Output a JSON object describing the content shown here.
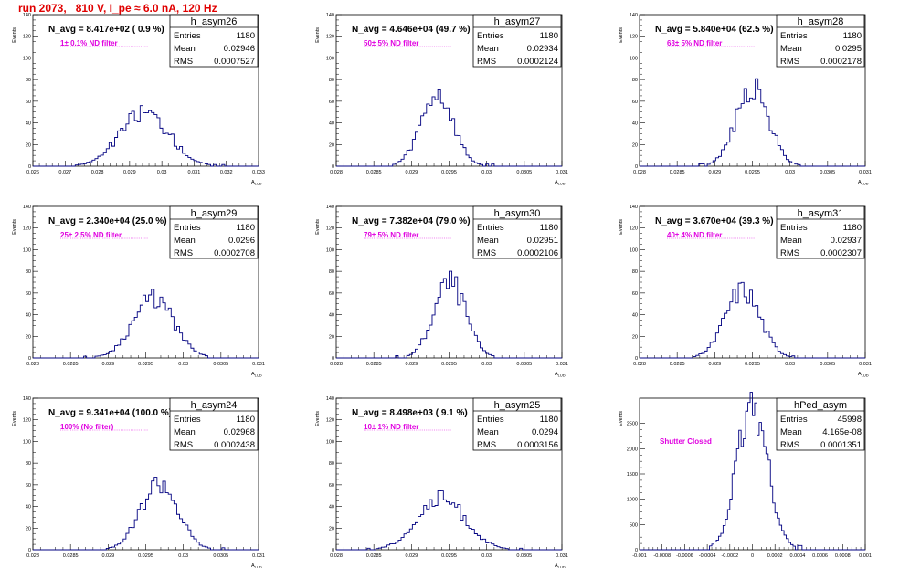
{
  "run_title": "run 2073,   810 V, I_pe ≈ 6.0 nA, 120 Hz",
  "y_axis_label": "Events",
  "colors": {
    "hist": "#000080",
    "title": "#e00000",
    "annotation": "#e000e0"
  },
  "chart_data": [
    {
      "type": "bar",
      "name": "h_asym26",
      "label": "N_avg = 8.417e+02 ( 0.9 %)",
      "note": "1± 0.1% ND filter",
      "entries": "1180",
      "mean": "0.02946",
      "rms": "0.0007527",
      "xlim": [
        0.026,
        0.033
      ],
      "ylim": [
        0,
        140
      ],
      "x_ticks": [
        "0.026",
        "0.027",
        "0.028",
        "0.029",
        "0.03",
        "0.031",
        "0.032",
        "0.033"
      ],
      "y_ticks": [
        "0",
        "20",
        "40",
        "60",
        "80",
        "100",
        "120",
        "140"
      ],
      "xlabel": "A",
      "hist": {
        "mean": 0.02946,
        "rms": 0.0007527,
        "peak": 50,
        "bins": 80,
        "seed": 26
      }
    },
    {
      "type": "bar",
      "name": "h_asym27",
      "label": "N_avg = 4.646e+04 (49.7 %)",
      "note": "50± 5% ND filter",
      "entries": "1180",
      "mean": "0.02934",
      "rms": "0.0002124",
      "xlim": [
        0.028,
        0.031
      ],
      "ylim": [
        0,
        140
      ],
      "x_ticks": [
        "0.028",
        "0.0285",
        "0.029",
        "0.0295",
        "0.03",
        "0.0305",
        "0.031"
      ],
      "y_ticks": [
        "0",
        "20",
        "40",
        "60",
        "80",
        "100",
        "120",
        "140"
      ],
      "xlabel": "A",
      "hist": {
        "mean": 0.02934,
        "rms": 0.0002124,
        "peak": 65,
        "bins": 80,
        "seed": 27
      }
    },
    {
      "type": "bar",
      "name": "h_asym28",
      "label": "N_avg = 5.840e+04 (62.5 %)",
      "note": "63± 5% ND filter",
      "entries": "1180",
      "mean": "0.0295",
      "rms": "0.0002178",
      "xlim": [
        0.028,
        0.031
      ],
      "ylim": [
        0,
        140
      ],
      "x_ticks": [
        "0.028",
        "0.0285",
        "0.029",
        "0.0295",
        "0.03",
        "0.0305",
        "0.031"
      ],
      "y_ticks": [
        "0",
        "20",
        "40",
        "60",
        "80",
        "100",
        "120",
        "140"
      ],
      "xlabel": "A",
      "hist": {
        "mean": 0.0295,
        "rms": 0.0002178,
        "peak": 72,
        "bins": 80,
        "seed": 28
      }
    },
    {
      "type": "bar",
      "name": "h_asym29",
      "label": "N_avg = 2.340e+04 (25.0 %)",
      "note": "25± 2.5% ND filter",
      "entries": "1180",
      "mean": "0.0296",
      "rms": "0.0002708",
      "xlim": [
        0.028,
        0.031
      ],
      "ylim": [
        0,
        140
      ],
      "x_ticks": [
        "0.028",
        "0.0285",
        "0.029",
        "0.0295",
        "0.03",
        "0.0305",
        "0.031"
      ],
      "y_ticks": [
        "0",
        "20",
        "40",
        "60",
        "80",
        "100",
        "120",
        "140"
      ],
      "xlabel": "A",
      "hist": {
        "mean": 0.0296,
        "rms": 0.0002708,
        "peak": 55,
        "bins": 80,
        "seed": 29
      }
    },
    {
      "type": "bar",
      "name": "h_asym30",
      "label": "N_avg = 7.382e+04 (79.0 %)",
      "note": "79± 5% ND filter",
      "entries": "1180",
      "mean": "0.02951",
      "rms": "0.0002106",
      "xlim": [
        0.028,
        0.031
      ],
      "ylim": [
        0,
        140
      ],
      "x_ticks": [
        "0.028",
        "0.0285",
        "0.029",
        "0.0295",
        "0.03",
        "0.0305",
        "0.031"
      ],
      "y_ticks": [
        "0",
        "20",
        "40",
        "60",
        "80",
        "100",
        "120",
        "140"
      ],
      "xlabel": "A",
      "hist": {
        "mean": 0.02951,
        "rms": 0.0002106,
        "peak": 70,
        "bins": 80,
        "seed": 30
      }
    },
    {
      "type": "bar",
      "name": "h_asym31",
      "label": "N_avg = 3.670e+04 (39.3 %)",
      "note": "40± 4% ND filter",
      "entries": "1180",
      "mean": "0.02937",
      "rms": "0.0002307",
      "xlim": [
        0.028,
        0.031
      ],
      "ylim": [
        0,
        140
      ],
      "x_ticks": [
        "0.028",
        "0.0285",
        "0.029",
        "0.0295",
        "0.03",
        "0.0305",
        "0.031"
      ],
      "y_ticks": [
        "0",
        "20",
        "40",
        "60",
        "80",
        "100",
        "120",
        "140"
      ],
      "xlabel": "A",
      "hist": {
        "mean": 0.02937,
        "rms": 0.0002307,
        "peak": 63,
        "bins": 80,
        "seed": 31
      }
    },
    {
      "type": "bar",
      "name": "h_asym24",
      "label": "N_avg = 9.341e+04 (100.0 %)",
      "note": "100% (No filter)",
      "entries": "1180",
      "mean": "0.02968",
      "rms": "0.0002438",
      "xlim": [
        0.028,
        0.031
      ],
      "ylim": [
        0,
        140
      ],
      "x_ticks": [
        "0.028",
        "0.0285",
        "0.029",
        "0.0295",
        "0.03",
        "0.0305",
        "0.031"
      ],
      "y_ticks": [
        "0",
        "20",
        "40",
        "60",
        "80",
        "100",
        "120",
        "140"
      ],
      "xlabel": "A",
      "hist": {
        "mean": 0.02968,
        "rms": 0.0002438,
        "peak": 62,
        "bins": 80,
        "seed": 24
      }
    },
    {
      "type": "bar",
      "name": "h_asym25",
      "label": "N_avg = 8.498e+03 ( 9.1 %)",
      "note": "10± 1% ND filter",
      "entries": "1180",
      "mean": "0.0294",
      "rms": "0.0003156",
      "xlim": [
        0.028,
        0.031
      ],
      "ylim": [
        0,
        140
      ],
      "x_ticks": [
        "0.028",
        "0.0285",
        "0.029",
        "0.0295",
        "0.03",
        "0.0305",
        "0.031"
      ],
      "y_ticks": [
        "0",
        "20",
        "40",
        "60",
        "80",
        "100",
        "120",
        "140"
      ],
      "xlabel": "A",
      "hist": {
        "mean": 0.0294,
        "rms": 0.0003156,
        "peak": 47,
        "bins": 80,
        "seed": 25
      }
    },
    {
      "type": "bar",
      "name": "hPed_asym",
      "label": "",
      "note": "Shutter Closed",
      "entries": "45998",
      "mean": "4.165e-08",
      "rms": "0.0001351",
      "xlim": [
        -0.001,
        0.001
      ],
      "ylim": [
        0,
        3000
      ],
      "x_ticks": [
        "-0.001",
        "-0.0008",
        "-0.0006",
        "-0.0004",
        "-0.0002",
        "0",
        "0.0002",
        "0.0004",
        "0.0006",
        "0.0008",
        "0.001"
      ],
      "y_ticks": [
        "0",
        "500",
        "1000",
        "1500",
        "2000",
        "2500"
      ],
      "xlabel": "",
      "hist": {
        "mean": 0.0,
        "rms": 0.0001351,
        "peak": 2850,
        "bins": 100,
        "seed": 99
      }
    }
  ]
}
